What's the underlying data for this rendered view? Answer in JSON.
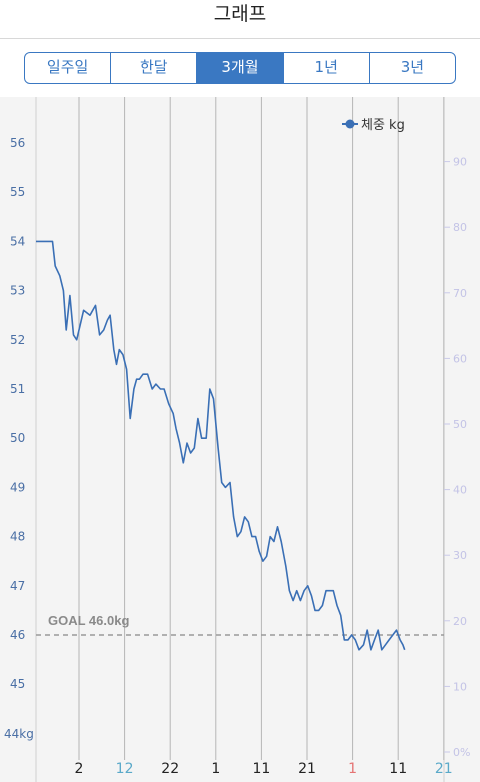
{
  "header": {
    "title": "그래프"
  },
  "tabs": [
    {
      "label": "일주일",
      "active": false
    },
    {
      "label": "한달",
      "active": false
    },
    {
      "label": "3개월",
      "active": true
    },
    {
      "label": "1년",
      "active": false
    },
    {
      "label": "3년",
      "active": false
    }
  ],
  "chart_data": {
    "type": "line",
    "legend": {
      "label": "체중 kg",
      "placement": "top-right"
    },
    "y_left": {
      "min": 44,
      "max": 57,
      "ticks": [
        45,
        46,
        47,
        48,
        49,
        50,
        51,
        52,
        53,
        54,
        55,
        56
      ],
      "bottom_label": "44kg"
    },
    "y_right": {
      "ticks": [
        "0%",
        "10",
        "20",
        "30",
        "40",
        "50",
        "60",
        "70",
        "80",
        "90"
      ]
    },
    "x_ticks": [
      {
        "label": "2",
        "color": "#222222"
      },
      {
        "label": "12",
        "color": "#5aa9c9"
      },
      {
        "label": "22",
        "color": "#222222"
      },
      {
        "label": "1",
        "color": "#222222"
      },
      {
        "label": "11",
        "color": "#222222"
      },
      {
        "label": "21",
        "color": "#222222"
      },
      {
        "label": "1",
        "color": "#e57373"
      },
      {
        "label": "11",
        "color": "#222222"
      },
      {
        "label": "21",
        "color": "#5aa9c9"
      }
    ],
    "goal": {
      "label": "GOAL 46.0kg",
      "value": 46.0
    },
    "series": [
      {
        "color": "#3a6fb5",
        "x": [
          0,
          0.22,
          0.36,
          0.42,
          0.52,
          0.6,
          0.66,
          0.74,
          0.82,
          0.89,
          1.04,
          1.18,
          1.3,
          1.39,
          1.48,
          1.56,
          1.62,
          1.7,
          1.76,
          1.82,
          1.9,
          1.98,
          2.06,
          2.14,
          2.2,
          2.26,
          2.34,
          2.44,
          2.54,
          2.62,
          2.72,
          2.8,
          2.9,
          3.0,
          3.06,
          3.14,
          3.22,
          3.3,
          3.38,
          3.46,
          3.54,
          3.62,
          3.72,
          3.8,
          3.88,
          3.98,
          4.06,
          4.14,
          4.24,
          4.32,
          4.4,
          4.48,
          4.56,
          4.64,
          4.72,
          4.8,
          4.88,
          4.96,
          5.04,
          5.12,
          5.2,
          5.28,
          5.36,
          5.46,
          5.54,
          5.62,
          5.7,
          5.78,
          5.86,
          5.94,
          6.02,
          6.1,
          6.18,
          6.26,
          6.34,
          6.42,
          6.5,
          6.58,
          6.66,
          6.74,
          6.82,
          6.9,
          6.98,
          7.06,
          7.16,
          7.24,
          7.32,
          7.4,
          7.48,
          7.56,
          7.64,
          7.72,
          7.8,
          7.88,
          7.96,
          8.02,
          8.06
        ],
        "values": [
          54.0,
          54.0,
          54.0,
          53.5,
          53.3,
          53.0,
          52.2,
          52.9,
          52.1,
          52.0,
          52.6,
          52.5,
          52.7,
          52.1,
          52.2,
          52.4,
          52.5,
          51.8,
          51.5,
          51.8,
          51.7,
          51.4,
          50.4,
          51.0,
          51.2,
          51.2,
          51.3,
          51.3,
          51.0,
          51.1,
          51.0,
          51.0,
          50.7,
          50.5,
          50.2,
          49.9,
          49.5,
          49.9,
          49.7,
          49.8,
          50.4,
          50.0,
          50.0,
          51.0,
          50.8,
          49.8,
          49.1,
          49.0,
          49.1,
          48.4,
          48.0,
          48.1,
          48.4,
          48.3,
          48.0,
          48.0,
          47.7,
          47.5,
          47.6,
          48.0,
          47.9,
          48.2,
          47.9,
          47.4,
          46.9,
          46.7,
          46.9,
          46.7,
          46.9,
          47.0,
          46.8,
          46.5,
          46.5,
          46.6,
          46.9,
          46.9,
          46.9,
          46.6,
          46.4,
          45.9,
          45.9,
          46.0,
          45.9,
          45.7,
          45.8,
          46.1,
          45.7,
          45.9,
          46.1,
          45.7,
          45.8,
          45.9,
          46.0,
          46.1,
          45.9,
          45.8,
          45.7
        ]
      }
    ]
  }
}
